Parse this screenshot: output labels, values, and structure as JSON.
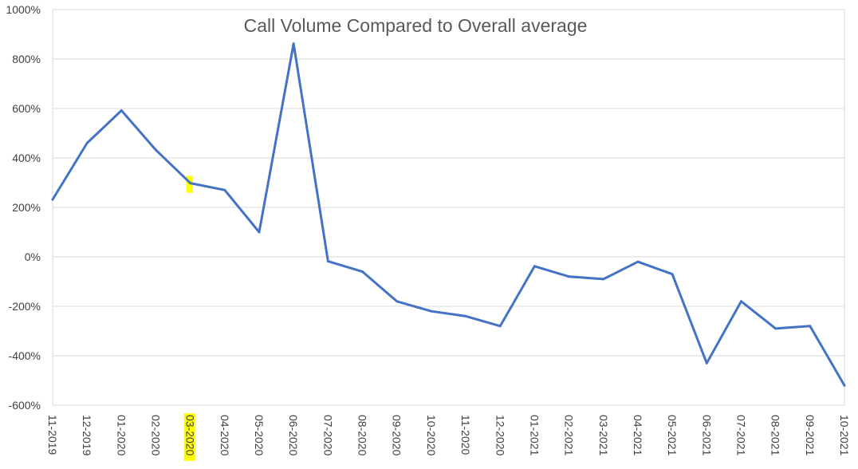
{
  "chart_data": {
    "type": "line",
    "title": "Call Volume Compared to Overall average",
    "xlabel": "",
    "ylabel": "",
    "ylim": [
      -600,
      1000
    ],
    "y_ticks": [
      -600,
      -400,
      -200,
      0,
      200,
      400,
      600,
      800,
      1000
    ],
    "y_tick_labels": [
      "-600%",
      "-400%",
      "-200%",
      "0%",
      "200%",
      "400%",
      "600%",
      "800%",
      "1000%"
    ],
    "grid": true,
    "legend": "none",
    "categories": [
      "11-2019",
      "12-2019",
      "01-2020",
      "02-2020",
      "03-2020",
      "04-2020",
      "05-2020",
      "06-2020",
      "07-2020",
      "08-2020",
      "09-2020",
      "10-2020",
      "11-2020",
      "12-2020",
      "01-2021",
      "02-2021",
      "03-2021",
      "04-2021",
      "05-2021",
      "06-2021",
      "07-2021",
      "08-2021",
      "09-2021",
      "10-2021"
    ],
    "series": [
      {
        "color": "#4472C4",
        "values": [
          232,
          460,
          592,
          432,
          298,
          270,
          100,
          862,
          -18,
          -60,
          -180,
          -220,
          -240,
          -280,
          -38,
          -80,
          -90,
          -20,
          -70,
          -430,
          -180,
          -290,
          -280,
          -520
        ]
      }
    ],
    "highlighted_category": "03-2020",
    "highlighted_point_index": 4,
    "highlight_color": "#FFFF00"
  }
}
